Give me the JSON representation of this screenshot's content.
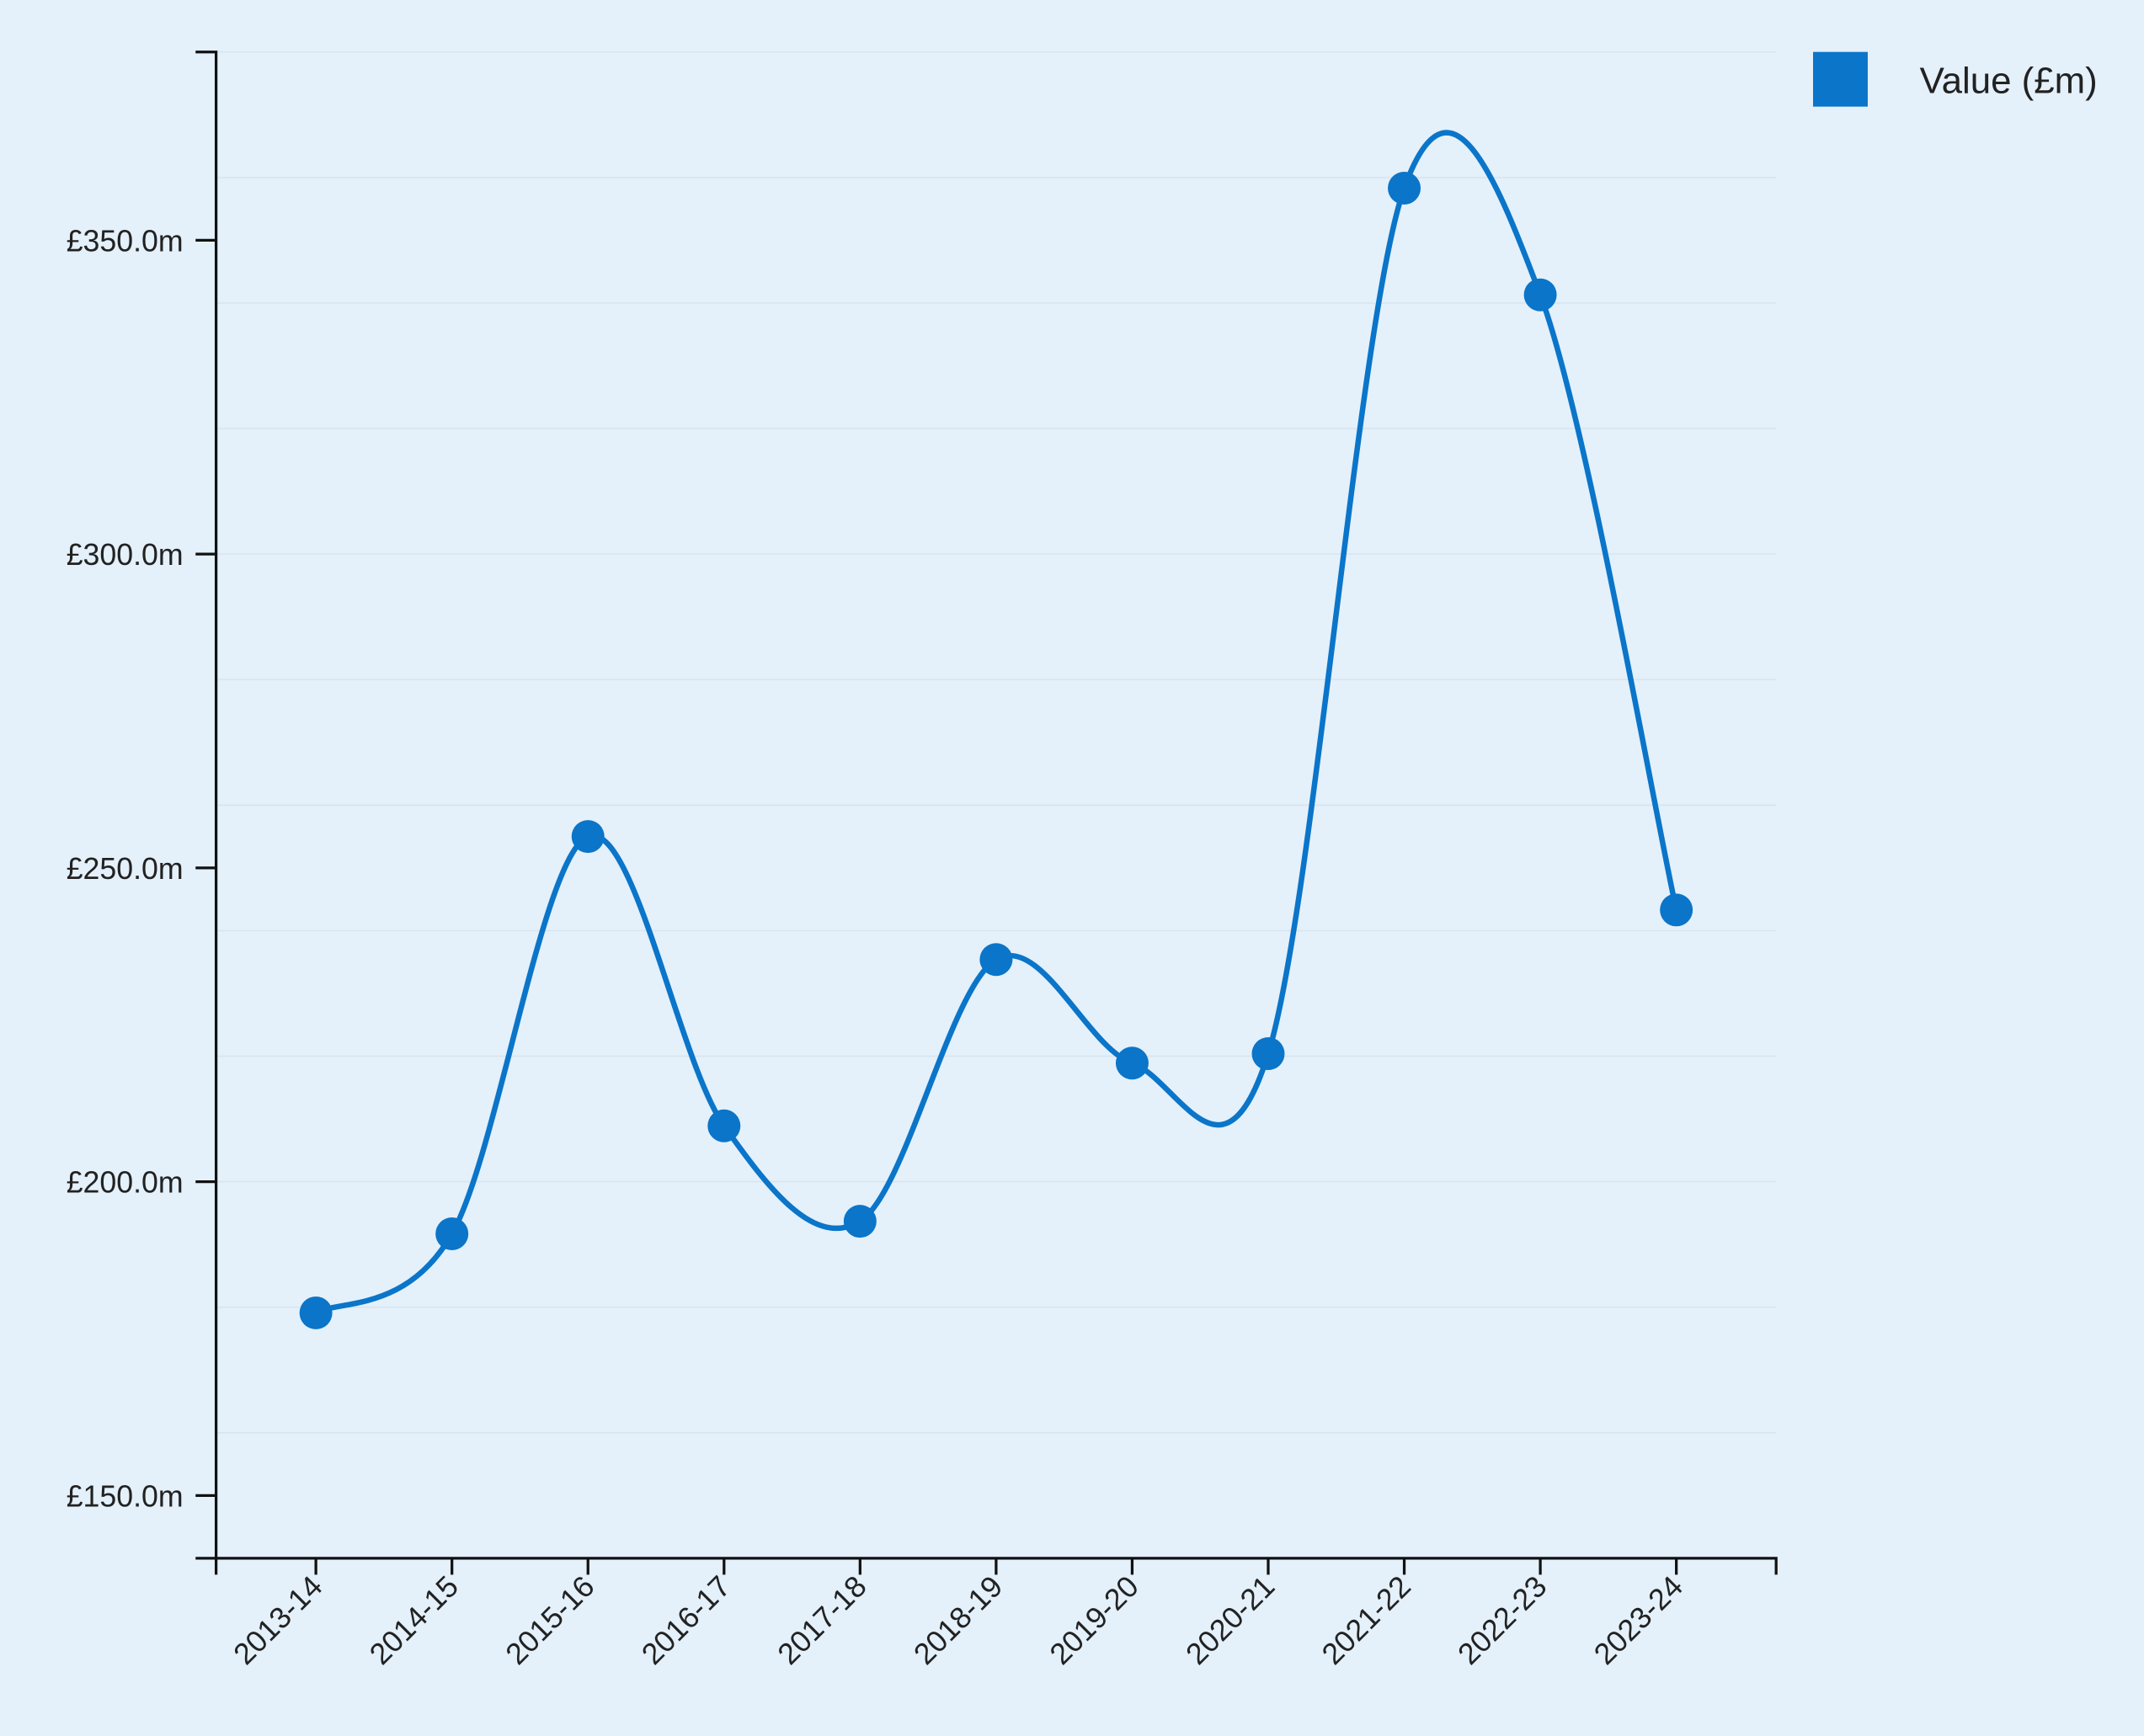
{
  "chart_data": {
    "type": "line",
    "categories": [
      "2013-14",
      "2014-15",
      "2015-16",
      "2016-17",
      "2017-18",
      "2018-19",
      "2019-20",
      "2020-21",
      "2021-22",
      "2022-23",
      "2023-24"
    ],
    "series": [
      {
        "name": "Value (£m)",
        "color": "#0a75c9",
        "values": [
          179.1,
          191.7,
          255.0,
          208.9,
          193.7,
          235.4,
          218.9,
          220.4,
          358.3,
          341.3,
          243.3
        ]
      }
    ],
    "ylim": [
      140,
      380
    ],
    "yticks": [
      {
        "value": 150,
        "label": "£150.0m"
      },
      {
        "value": 200,
        "label": "£200.0m"
      },
      {
        "value": 250,
        "label": "£250.0m"
      },
      {
        "value": 300,
        "label": "£300.0m"
      },
      {
        "value": 350,
        "label": "£350.0m"
      }
    ],
    "ygrid": [
      160,
      180,
      200,
      220,
      240,
      260,
      280,
      300,
      320,
      340,
      360,
      380
    ],
    "smooth": true,
    "legend": "top-right"
  }
}
